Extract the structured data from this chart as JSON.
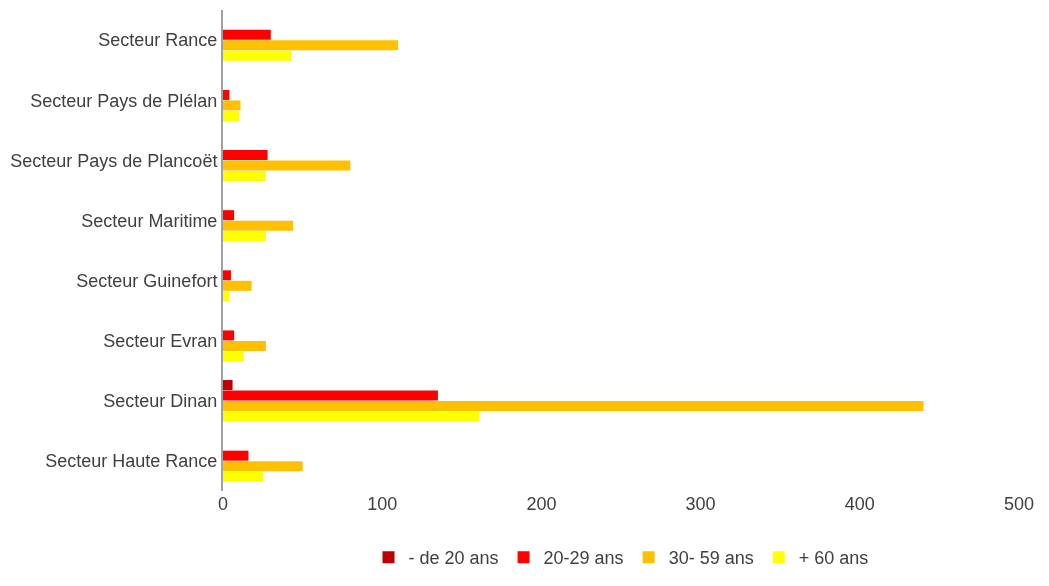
{
  "chart_data": {
    "type": "bar",
    "orientation": "horizontal",
    "categories": [
      "Secteur Rance",
      "Secteur Pays de Plélan",
      "Secteur Pays de Plancoët",
      "Secteur Maritime",
      "Secteur Guinefort",
      "Secteur Evran",
      "Secteur Dinan",
      "Secteur Haute Rance"
    ],
    "series": [
      {
        "name": "- de 20 ans",
        "color": "#c00000",
        "values": [
          0,
          0,
          0,
          0,
          0,
          0,
          6,
          0
        ]
      },
      {
        "name": "20-29 ans",
        "color": "#ff0000",
        "values": [
          30,
          4,
          28,
          7,
          5,
          7,
          135,
          16
        ]
      },
      {
        "name": "30- 59 ans",
        "color": "#ffc000",
        "values": [
          110,
          11,
          80,
          44,
          18,
          27,
          440,
          50
        ]
      },
      {
        "name": "+ 60 ans",
        "color": "#ffff00",
        "values": [
          43,
          10,
          27,
          27,
          4,
          13,
          161,
          25
        ]
      }
    ],
    "xlim": [
      0,
      500
    ],
    "xticks": [
      0,
      100,
      200,
      300,
      400,
      500
    ],
    "legend": "bottom"
  }
}
